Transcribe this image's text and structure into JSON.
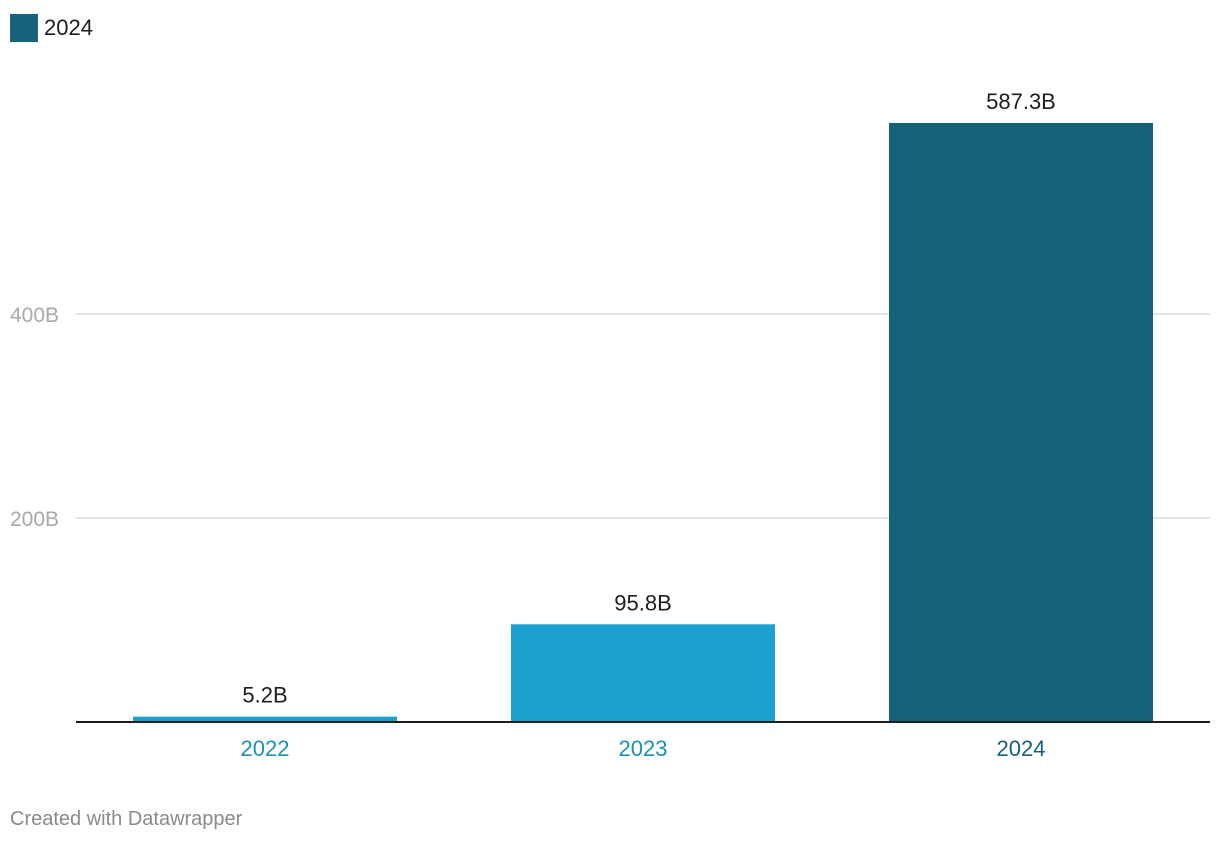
{
  "legend": {
    "label": "2024",
    "color": "#17627b"
  },
  "credit": "Created with Datawrapper",
  "chart_data": {
    "type": "bar",
    "categories": [
      "2022",
      "2023",
      "2024"
    ],
    "values": [
      5.2,
      95.8,
      587.3
    ],
    "value_labels": [
      "5.2B",
      "95.8B",
      "587.3B"
    ],
    "bar_colors": [
      "#1aa1cf",
      "#1aa1cf",
      "#17627b"
    ],
    "category_label_colors": [
      "#1a92b5",
      "#1a92b5",
      "#17627b"
    ],
    "title": "",
    "xlabel": "",
    "ylabel": "",
    "ylim": [
      0,
      600
    ],
    "yticks": [
      200,
      400
    ],
    "ytick_labels": [
      "200B",
      "400B"
    ],
    "grid": true,
    "legend_position": "top-left"
  }
}
